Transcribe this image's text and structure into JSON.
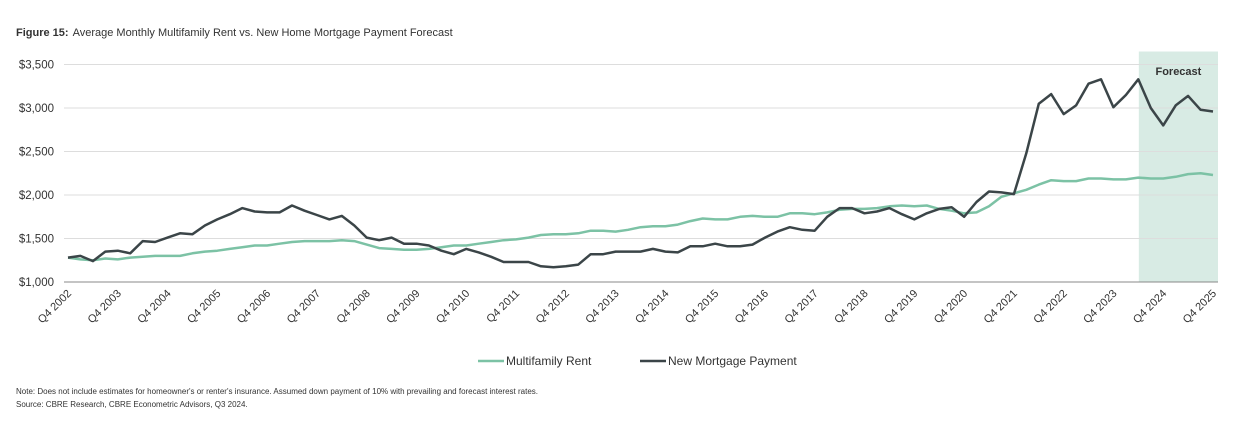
{
  "chart_data": {
    "type": "line",
    "figure_label": "Figure 15:",
    "title": "Average Monthly Multifamily Rent vs. New Home Mortgage Payment Forecast",
    "categories": [
      "Q4 2002",
      null,
      null,
      null,
      "Q4 2003",
      null,
      null,
      null,
      "Q4 2004",
      null,
      null,
      null,
      "Q4 2005",
      null,
      null,
      null,
      "Q4 2006",
      null,
      null,
      null,
      "Q4 2007",
      null,
      null,
      null,
      "Q4 2008",
      null,
      null,
      null,
      "Q4 2009",
      null,
      null,
      null,
      "Q4 2010",
      null,
      null,
      null,
      "Q4 2011",
      null,
      null,
      null,
      "Q4 2012",
      null,
      null,
      null,
      "Q4 2013",
      null,
      null,
      null,
      "Q4 2014",
      null,
      null,
      null,
      "Q4 2015",
      null,
      null,
      null,
      "Q4 2016",
      null,
      null,
      null,
      "Q4 2017",
      null,
      null,
      null,
      "Q4 2018",
      null,
      null,
      null,
      "Q4 2019",
      null,
      null,
      null,
      "Q4 2020",
      null,
      null,
      null,
      "Q4 2021",
      null,
      null,
      null,
      "Q4 2022",
      null,
      null,
      null,
      "Q4 2023",
      null,
      null,
      null,
      "Q4 2024",
      null,
      null,
      null,
      "Q4 2025"
    ],
    "series": [
      {
        "name": "Multifamily Rent",
        "color": "#7cc2a5",
        "values": [
          1280,
          1260,
          1250,
          1270,
          1260,
          1280,
          1290,
          1300,
          1300,
          1300,
          1330,
          1350,
          1360,
          1380,
          1400,
          1420,
          1420,
          1440,
          1460,
          1470,
          1470,
          1470,
          1480,
          1470,
          1430,
          1390,
          1380,
          1370,
          1370,
          1380,
          1400,
          1420,
          1420,
          1440,
          1460,
          1480,
          1490,
          1510,
          1540,
          1550,
          1550,
          1560,
          1590,
          1590,
          1580,
          1600,
          1630,
          1640,
          1640,
          1660,
          1700,
          1730,
          1720,
          1720,
          1750,
          1760,
          1750,
          1750,
          1790,
          1790,
          1780,
          1800,
          1830,
          1840,
          1840,
          1850,
          1870,
          1880,
          1870,
          1880,
          1840,
          1820,
          1790,
          1800,
          1870,
          1980,
          2020,
          2060,
          2120,
          2170,
          2160,
          2160,
          2190,
          2190,
          2180,
          2180,
          2200,
          2190,
          2190,
          2210,
          2240,
          2250,
          2230
        ]
      },
      {
        "name": "New Mortgage Payment",
        "color": "#3b4548",
        "values": [
          1280,
          1300,
          1240,
          1350,
          1360,
          1330,
          1470,
          1460,
          1510,
          1560,
          1550,
          1650,
          1720,
          1780,
          1850,
          1810,
          1800,
          1800,
          1880,
          1820,
          1770,
          1720,
          1760,
          1650,
          1510,
          1480,
          1510,
          1440,
          1440,
          1420,
          1360,
          1320,
          1380,
          1340,
          1290,
          1230,
          1230,
          1230,
          1180,
          1170,
          1180,
          1200,
          1320,
          1320,
          1350,
          1350,
          1350,
          1380,
          1350,
          1340,
          1410,
          1410,
          1440,
          1410,
          1410,
          1430,
          1510,
          1580,
          1630,
          1600,
          1590,
          1750,
          1850,
          1850,
          1790,
          1810,
          1850,
          1780,
          1720,
          1790,
          1840,
          1860,
          1750,
          1920,
          2040,
          2030,
          2010,
          2480,
          3050,
          3160,
          2930,
          3030,
          3280,
          3330,
          3010,
          3150,
          3330,
          3000,
          2800,
          3030,
          3140,
          2980,
          2960
        ]
      }
    ],
    "ylim": [
      1000,
      3650
    ],
    "yticks": [
      {
        "value": 1000,
        "label": "$1,000"
      },
      {
        "value": 1500,
        "label": "$1,500"
      },
      {
        "value": 2000,
        "label": "$2,000"
      },
      {
        "value": 2500,
        "label": "$2,500"
      },
      {
        "value": 3000,
        "label": "$3,000"
      },
      {
        "value": 3500,
        "label": "$3,500"
      }
    ],
    "grid": true,
    "forecast": {
      "label": "Forecast",
      "start": 86,
      "color": "#d8ebe4"
    },
    "notes": [
      "Note: Does not include estimates for homeowner's or renter's insurance. Assumed down payment of 10% with prevailing and forecast interest rates.",
      "Source: CBRE Research, CBRE Econometric Advisors, Q3 2024."
    ]
  }
}
